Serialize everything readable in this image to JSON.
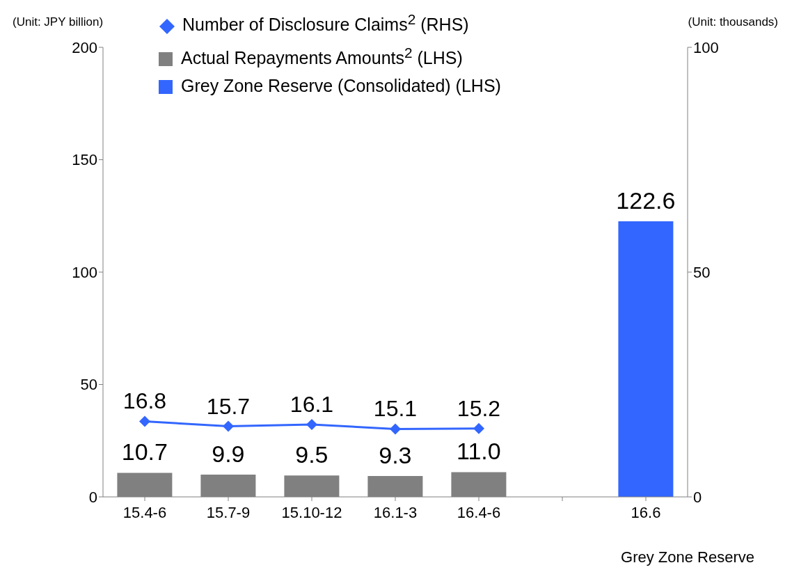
{
  "chart_data": {
    "type": "bar",
    "ylabel": "(Unit: JPY billion)",
    "y2label": "(Unit: thousands)",
    "categories": [
      "15.4-6",
      "15.7-9",
      "15.10-12",
      "16.1-3",
      "16.4-6",
      null,
      "16.6"
    ],
    "series": [
      {
        "name": "Number of Disclosure Claims$^{2}$ (RHS)",
        "type": "line",
        "axis": "y2",
        "color": "#3366ff",
        "marker": "diamond",
        "values": [
          16.8,
          15.7,
          16.1,
          15.1,
          15.2,
          null,
          null
        ],
        "value_labels": [
          "16.8",
          "15.7",
          "16.1",
          "15.1",
          "15.2",
          null,
          null
        ]
      },
      {
        "name": "Actual Repayments Amounts$^{2}$ (LHS)",
        "color": "#808080",
        "values": [
          10.7,
          9.9,
          9.5,
          9.3,
          11.0,
          null,
          null
        ],
        "value_labels": [
          "10.7",
          "9.9",
          "9.5",
          "9.3",
          "11.0",
          null,
          null
        ]
      },
      {
        "name": "Grey Zone Reserve (Consolidated) (LHS)",
        "color": "#3366ff",
        "values": [
          null,
          null,
          null,
          null,
          null,
          null,
          122.6
        ],
        "value_labels": [
          null,
          null,
          null,
          null,
          null,
          null,
          "122.6"
        ]
      }
    ],
    "stacked": true,
    "annotations": [
      "Grey Zone Reserve"
    ],
    "ylim": [
      0,
      200
    ],
    "yticks": [
      0,
      50,
      100,
      150,
      200
    ],
    "y2lim": [
      0,
      100
    ],
    "y2ticks": [
      0,
      50,
      100
    ],
    "grid": false,
    "legend": "top"
  }
}
